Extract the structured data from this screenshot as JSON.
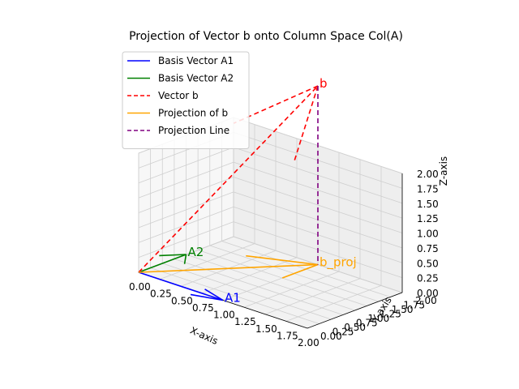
{
  "chart_data": {
    "type": "line",
    "projection": "3d",
    "title": "Projection of Vector b onto Column Space Col(A)",
    "xlabel": "X-axis",
    "ylabel": "Y-axis",
    "zlabel": "Z-axis",
    "xlim": [
      0,
      2
    ],
    "ylim": [
      0,
      2
    ],
    "zlim": [
      0,
      2
    ],
    "xticks": [
      "0.00",
      "0.25",
      "0.50",
      "0.75",
      "1.00",
      "1.25",
      "1.50",
      "1.75",
      "2.00"
    ],
    "yticks": [
      "0.00",
      "0.25",
      "0.50",
      "0.75",
      "1.00",
      "1.25",
      "1.50",
      "1.75",
      "2.00"
    ],
    "zticks": [
      "0.00",
      "0.25",
      "0.50",
      "0.75",
      "1.00",
      "1.25",
      "1.50",
      "1.75",
      "2.00"
    ],
    "grid": true,
    "legend_position": "upper-left",
    "series": [
      {
        "name": "Basis Vector A1",
        "style": "solid",
        "color": "#0000ff",
        "kind": "arrow",
        "from": [
          0,
          0,
          0
        ],
        "to": [
          1,
          0,
          0
        ],
        "label": "A1",
        "label_color": "#0000ff"
      },
      {
        "name": "Basis Vector A2",
        "style": "solid",
        "color": "#008000",
        "kind": "arrow",
        "from": [
          0,
          0,
          0
        ],
        "to": [
          0,
          1,
          0
        ],
        "label": "A2",
        "label_color": "#008000"
      },
      {
        "name": "Vector b",
        "style": "dashed",
        "color": "#ff0000",
        "kind": "arrow",
        "from": [
          0,
          0,
          0
        ],
        "to": [
          1,
          2,
          3
        ],
        "label": "b",
        "label_color": "#ff0000"
      },
      {
        "name": "Projection of b",
        "style": "solid",
        "color": "#ffa500",
        "kind": "arrow",
        "from": [
          0,
          0,
          0
        ],
        "to": [
          1,
          2,
          0
        ],
        "label": "b_proj",
        "label_color": "#ffa500"
      },
      {
        "name": "Projection Line",
        "style": "dashed",
        "color": "#800080",
        "kind": "line",
        "from": [
          1,
          2,
          3
        ],
        "to": [
          1,
          2,
          0
        ]
      }
    ]
  }
}
